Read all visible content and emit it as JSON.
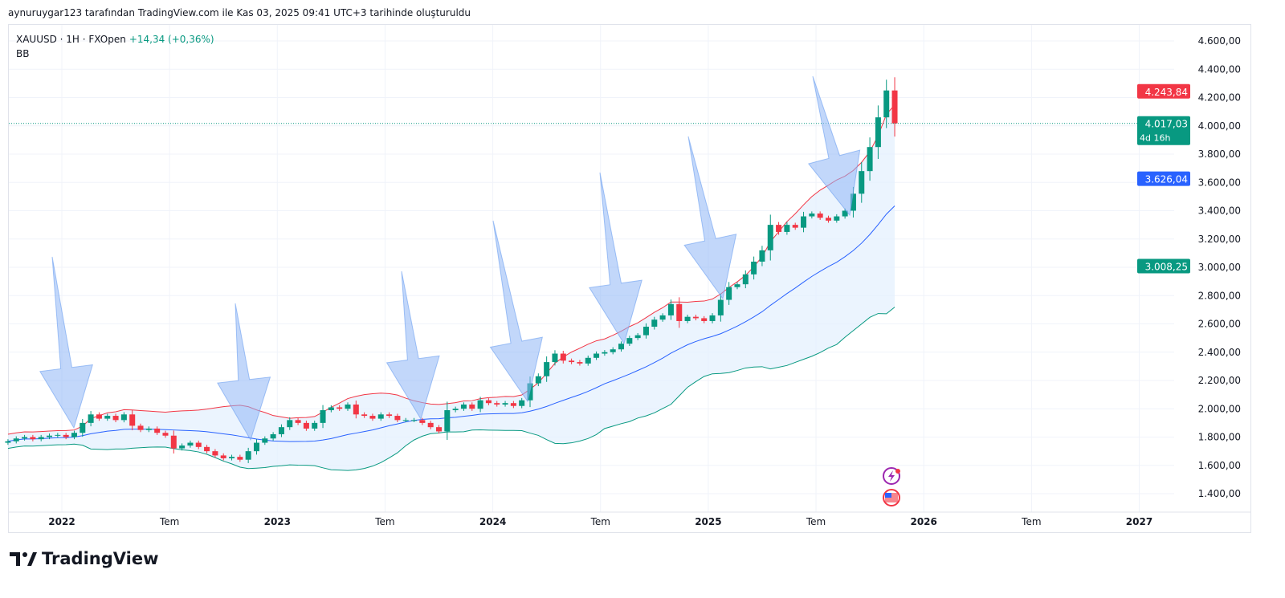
{
  "caption": "aynuruygar123 tarafından TradingView.com ile Kas 03, 2025 09:41 UTC+3 tarihinde oluşturuldu",
  "legend": {
    "symbol": "XAUUSD · 1H · FXOpen",
    "change": "+14,34 (+0,36%)",
    "indicator": "BB"
  },
  "logo_text": "TradingView",
  "price_labels": {
    "upper": {
      "text": "4.243,84",
      "value": 4243.84,
      "color": "#f23645"
    },
    "last": {
      "text": "4.017,03",
      "value": 4017.03,
      "countdown": "4d 16h",
      "color": "#089981"
    },
    "basis": {
      "text": "3.626,04",
      "value": 3626.04,
      "color": "#2962ff"
    },
    "lower": {
      "text": "3.008,25",
      "value": 3008.25,
      "color": "#089981"
    }
  },
  "colors": {
    "up": "#089981",
    "down": "#f23645",
    "basis": "#2962ff",
    "upper": "#f23645",
    "lower": "#089981",
    "band_fill": "#e3effd",
    "arrow": "#8fb6f5"
  },
  "chart_data": {
    "type": "candlestick",
    "title": "XAUUSD",
    "interval_note": "approx. biweekly closes read from chart",
    "x_start": "2021-10",
    "y_ticks": [
      "4.600,00",
      "4.400,00",
      "4.200,00",
      "4.000,00",
      "3.800,00",
      "3.600,00",
      "3.400,00",
      "3.200,00",
      "3.000,00",
      "2.800,00",
      "2.600,00",
      "2.400,00",
      "2.200,00",
      "2.000,00",
      "1.800,00",
      "1.600,00",
      "1.400,00"
    ],
    "y_tick_values": [
      4600,
      4400,
      4200,
      4000,
      3800,
      3600,
      3400,
      3200,
      3000,
      2800,
      2600,
      2400,
      2200,
      2000,
      1800,
      1600,
      1400
    ],
    "ylim": [
      1300,
      4700
    ],
    "x_ticks": [
      "2022",
      "Tem",
      "2023",
      "Tem",
      "2024",
      "Tem",
      "2025",
      "Tem",
      "2026",
      "Tem",
      "2027"
    ],
    "x_tick_years": [
      2022,
      2022.5,
      2023,
      2023.5,
      2024,
      2024.5,
      2025,
      2025.5,
      2026,
      2026.5,
      2027
    ],
    "xlim_years": [
      2021.75,
      2027.4
    ],
    "candle_start_year": 2021.75,
    "candle_step_years": 0.03846,
    "bb_period": 20,
    "closes": [
      1770,
      1790,
      1800,
      1785,
      1800,
      1810,
      1815,
      1800,
      1830,
      1900,
      1960,
      1930,
      1950,
      1920,
      1960,
      1880,
      1850,
      1860,
      1830,
      1810,
      1720,
      1740,
      1760,
      1730,
      1700,
      1670,
      1650,
      1660,
      1640,
      1700,
      1760,
      1790,
      1820,
      1870,
      1920,
      1900,
      1860,
      1900,
      1990,
      2010,
      2000,
      2030,
      1960,
      1950,
      1930,
      1960,
      1950,
      1920,
      1920,
      1920,
      1900,
      1870,
      1840,
      1990,
      2000,
      2030,
      2000,
      2060,
      2040,
      2030,
      2040,
      2020,
      2060,
      2180,
      2230,
      2330,
      2390,
      2340,
      2330,
      2320,
      2360,
      2390,
      2400,
      2420,
      2460,
      2500,
      2520,
      2580,
      2630,
      2660,
      2740,
      2620,
      2650,
      2640,
      2620,
      2660,
      2770,
      2860,
      2880,
      2950,
      3040,
      3120,
      3300,
      3250,
      3300,
      3280,
      3360,
      3380,
      3350,
      3330,
      3360,
      3400,
      3520,
      3680,
      3850,
      4060,
      4250,
      4017
    ]
  }
}
